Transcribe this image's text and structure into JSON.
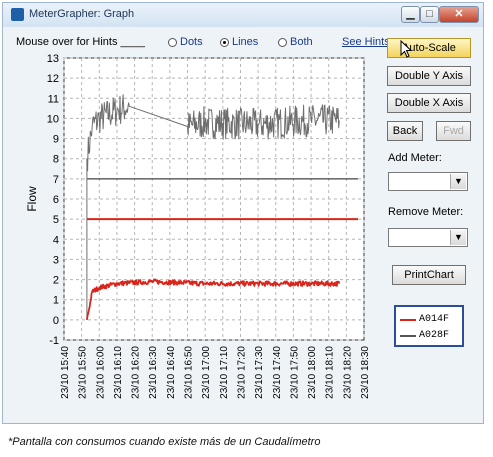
{
  "window": {
    "title": "MeterGrapher: Graph",
    "buttons": {
      "minimize": "▁",
      "maximize": "□",
      "close": "✕"
    }
  },
  "toolbar": {
    "hint_label": "Mouse over for Hints ____",
    "options": [
      {
        "label": "Dots",
        "selected": false
      },
      {
        "label": "Lines",
        "selected": true
      },
      {
        "label": "Both",
        "selected": false
      }
    ],
    "see_hints": "See Hints"
  },
  "side": {
    "auto_scale": "Auto-Scale",
    "double_y": "Double Y Axis",
    "double_x": "Double X Axis",
    "back": "Back",
    "fwd": "Fwd",
    "add_meter_label": "Add Meter:",
    "remove_meter_label": "Remove Meter:",
    "print_chart": "PrintChart"
  },
  "legend": {
    "items": [
      {
        "name": "A014F",
        "color": "#d8261c"
      },
      {
        "name": "A028F",
        "color": "#555555"
      }
    ]
  },
  "caption": "*Pantalla con consumos cuando existe más de un Caudalímetro",
  "chart_data": {
    "type": "line",
    "ylabel": "Flow",
    "ylim": [
      -1,
      13
    ],
    "yticks": [
      -1,
      0,
      1,
      2,
      3,
      4,
      5,
      6,
      7,
      8,
      9,
      10,
      11,
      12,
      13
    ],
    "x_ticks": [
      "23/10 15:40",
      "23/10 15:50",
      "23/10 16:00",
      "23/10 16:10",
      "23/10 16:20",
      "23/10 16:30",
      "23/10 16:40",
      "23/10 16:50",
      "23/10 17:00",
      "23/10 17:10",
      "23/10 17:20",
      "23/10 17:30",
      "23/10 17:40",
      "23/10 17:50",
      "23/10 18:00",
      "23/10 18:10",
      "23/10 18:20",
      "23/10 18:30"
    ],
    "grid": true,
    "series": [
      {
        "name": "A028F",
        "color": "#6e6e6e",
        "points": [
          [
            "15:53",
            0
          ],
          [
            "15:53",
            8
          ],
          [
            "15:56",
            9.6
          ],
          [
            "16:00",
            10.0
          ],
          [
            "16:10",
            10.4
          ],
          [
            "16:17",
            10.6
          ],
          [
            "16:50",
            9.6
          ],
          [
            "17:00",
            9.8
          ],
          [
            "17:30",
            9.7
          ],
          [
            "18:00",
            9.9
          ],
          [
            "18:16",
            9.9
          ]
        ],
        "noise": 0.8
      },
      {
        "name": "A014F",
        "color": "#d8261c",
        "points": [
          [
            "15:53",
            0
          ],
          [
            "15:56",
            1.4
          ],
          [
            "16:00",
            1.6
          ],
          [
            "16:10",
            1.8
          ],
          [
            "16:30",
            1.9
          ],
          [
            "17:00",
            1.8
          ],
          [
            "17:30",
            1.8
          ],
          [
            "18:00",
            1.8
          ],
          [
            "18:16",
            1.8
          ]
        ],
        "noise": 0.12
      }
    ],
    "reference_lines": [
      {
        "y": 7,
        "color": "#444444"
      },
      {
        "y": 5,
        "color": "#d8261c"
      }
    ]
  }
}
